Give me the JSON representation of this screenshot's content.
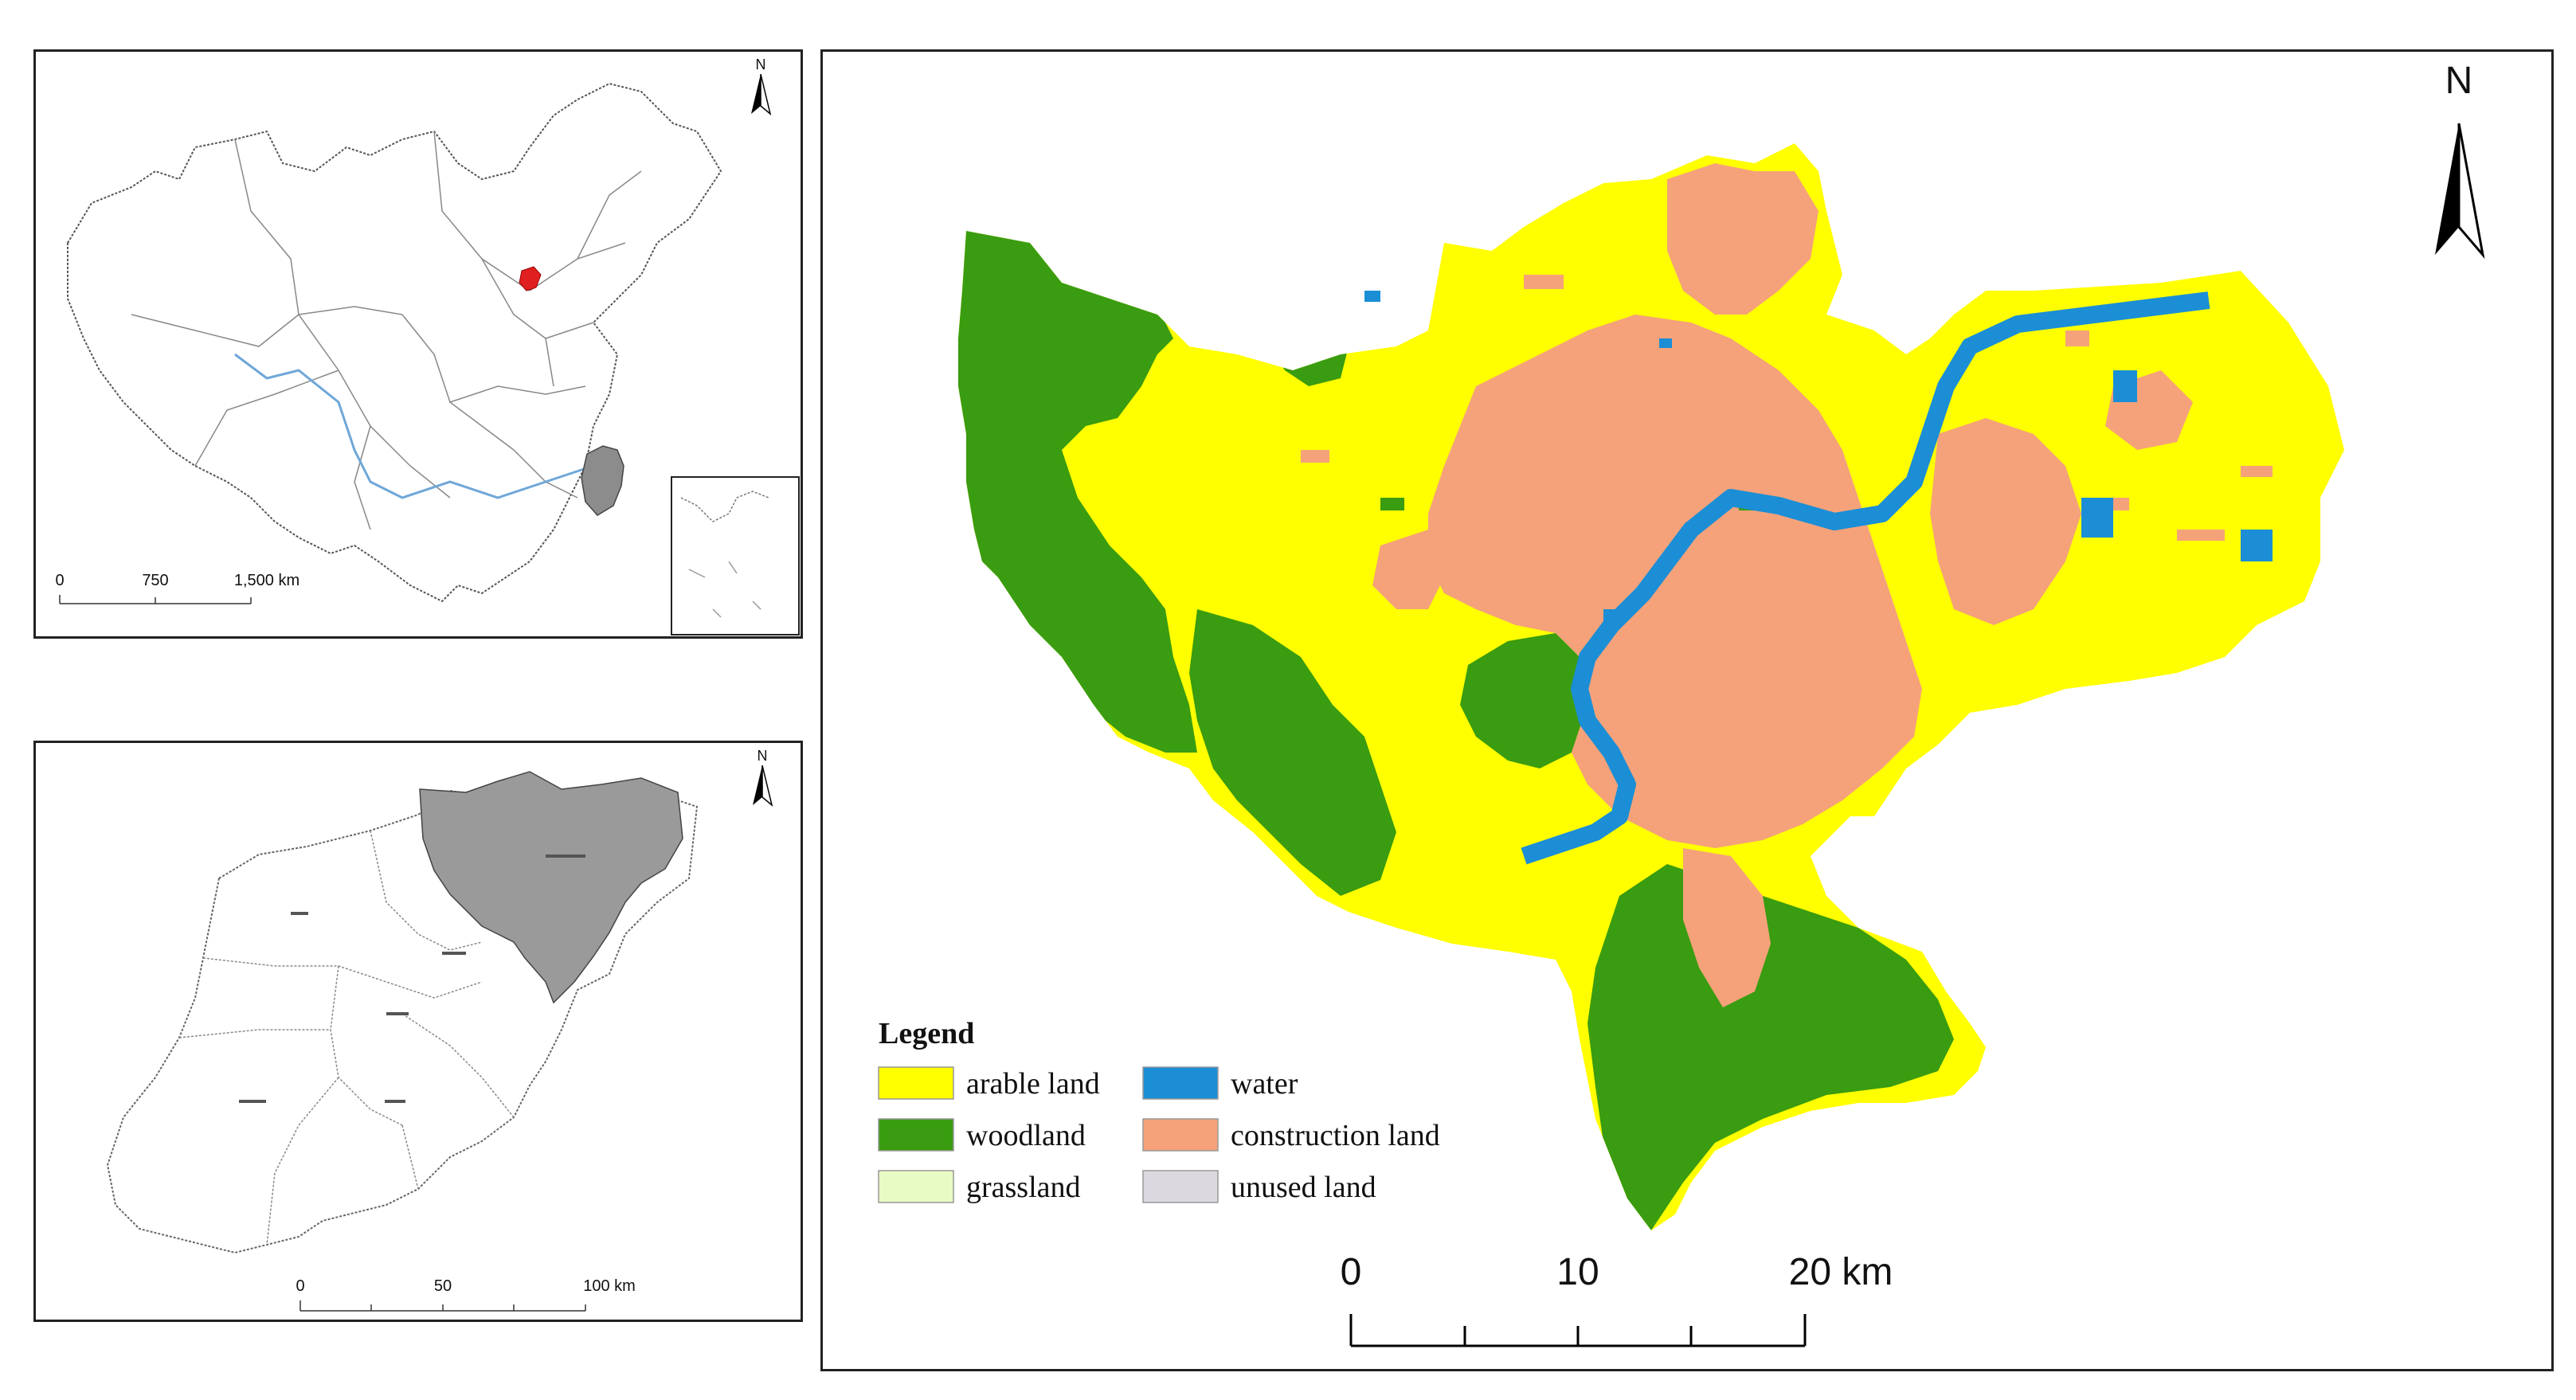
{
  "inset_china": {
    "north": "N",
    "scale": {
      "ticks": [
        "0",
        "750",
        "1,500 km"
      ]
    }
  },
  "inset_province": {
    "north": "N",
    "scale": {
      "ticks": [
        "0",
        "50",
        "100 km"
      ]
    }
  },
  "main_map": {
    "north": "N",
    "legend": {
      "title": "Legend",
      "items": [
        {
          "label": "arable land",
          "color": "#ffff00"
        },
        {
          "label": "water",
          "color": "#1b8ed6"
        },
        {
          "label": "woodland",
          "color": "#3a9c10"
        },
        {
          "label": "construction land",
          "color": "#f5a27a"
        },
        {
          "label": "grassland",
          "color": "#e9fbc4"
        },
        {
          "label": "unused land",
          "color": "#dcd8e0"
        }
      ]
    },
    "scale": {
      "ticks": [
        "0",
        "10",
        "20 km"
      ]
    }
  },
  "colors": {
    "arable": "#ffff00",
    "woodland": "#3a9c10",
    "construction": "#f5a27a",
    "water": "#1b8ed6",
    "highlight_red": "#e02020",
    "province_gray": "#8c8c8c"
  }
}
